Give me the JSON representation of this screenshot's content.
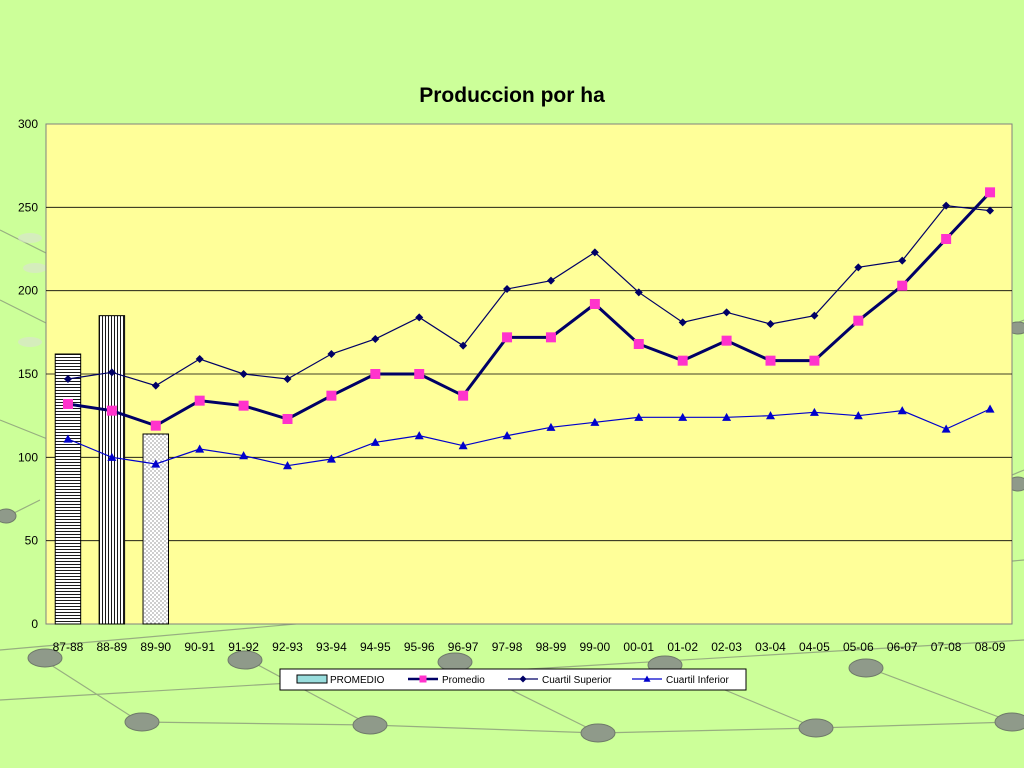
{
  "chart_data": {
    "type": "line",
    "title": "Produccion por ha",
    "categories": [
      "87-88",
      "88-89",
      "89-90",
      "90-91",
      "91-92",
      "92-93",
      "93-94",
      "94-95",
      "95-96",
      "96-97",
      "97-98",
      "98-99",
      "99-00",
      "00-01",
      "01-02",
      "02-03",
      "03-04",
      "04-05",
      "05-06",
      "06-07",
      "07-08",
      "08-09"
    ],
    "ylim": [
      0,
      300
    ],
    "yticks": [
      0,
      50,
      100,
      150,
      200,
      250,
      300
    ],
    "grid": true,
    "legend_position": "bottom",
    "bars": {
      "name": "PROMEDIO",
      "categories": [
        "87-88",
        "88-89",
        "89-90"
      ],
      "values": [
        162,
        185,
        114
      ]
    },
    "series": [
      {
        "name": "Promedio",
        "color": "#000066",
        "marker": "square",
        "marker_color": "#ff33cc",
        "values": [
          132,
          128,
          119,
          134,
          131,
          123,
          137,
          150,
          150,
          137,
          172,
          172,
          192,
          168,
          158,
          170,
          158,
          158,
          182,
          203,
          231,
          259
        ]
      },
      {
        "name": "Cuartil Superior",
        "color": "#000066",
        "marker": "diamond",
        "marker_color": "#000066",
        "values": [
          147,
          151,
          143,
          159,
          150,
          147,
          162,
          171,
          184,
          167,
          201,
          206,
          223,
          199,
          181,
          187,
          180,
          185,
          214,
          218,
          251,
          248
        ]
      },
      {
        "name": "Cuartil Inferior",
        "color": "#0000cc",
        "marker": "triangle",
        "marker_color": "#0000cc",
        "values": [
          111,
          100,
          96,
          105,
          101,
          95,
          99,
          109,
          113,
          107,
          113,
          118,
          121,
          124,
          124,
          124,
          125,
          127,
          125,
          128,
          117,
          129
        ]
      }
    ]
  }
}
